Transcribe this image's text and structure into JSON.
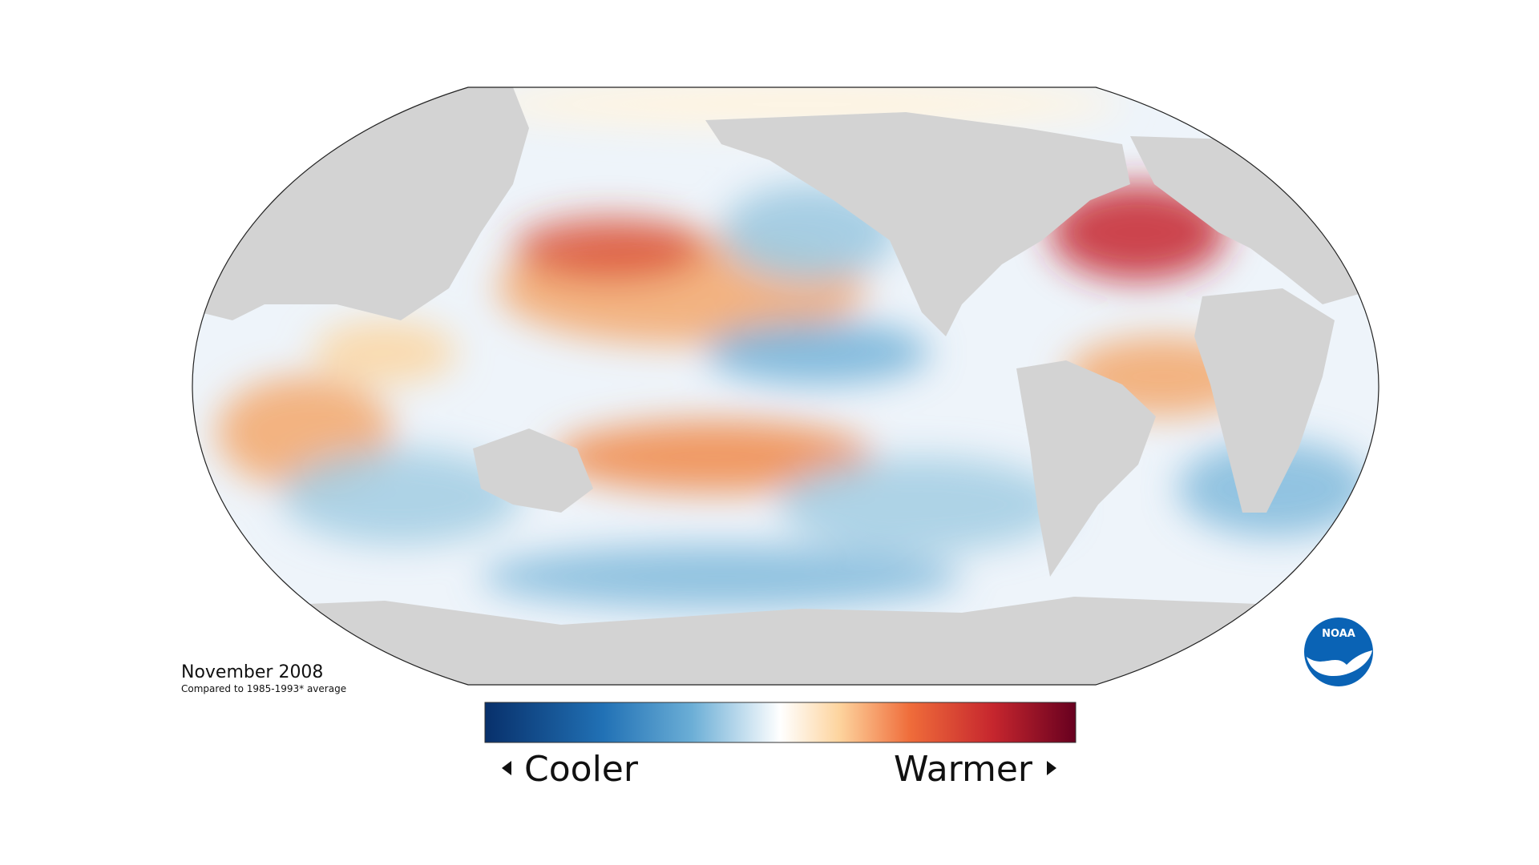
{
  "map": {
    "date": "November 2008",
    "subtitle": "Compared to 1985-1993* average"
  },
  "legend": {
    "low_label": "Cooler",
    "high_label": "Warmer"
  },
  "logo": {
    "text": "NOAA"
  }
}
